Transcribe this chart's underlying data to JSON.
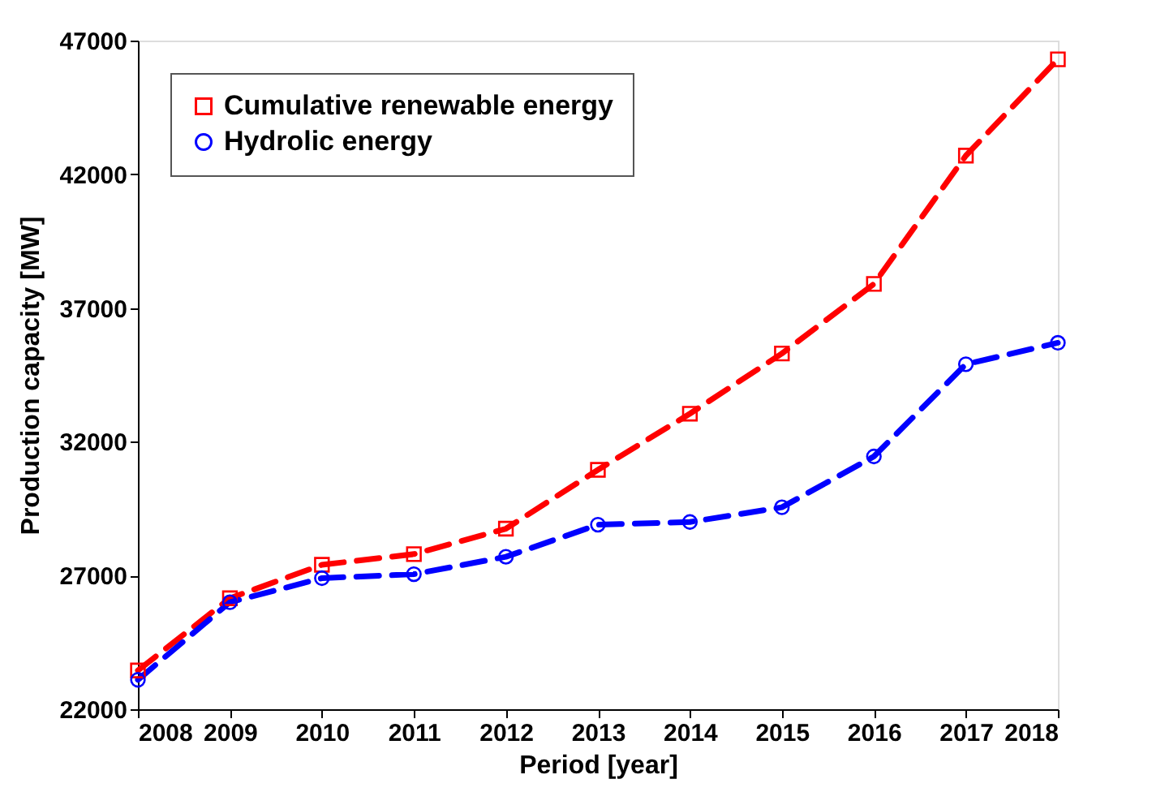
{
  "chart_data": {
    "type": "line",
    "xlabel": "Period [year]",
    "ylabel": "Production capacity [MW]",
    "x": [
      2008,
      2009,
      2010,
      2011,
      2012,
      2013,
      2014,
      2015,
      2016,
      2017,
      2018
    ],
    "series": [
      {
        "name": "Cumulative renewable energy",
        "color": "#ff0000",
        "marker": "square",
        "line_style": "dashed",
        "values": [
          23450,
          26150,
          27400,
          27800,
          28750,
          30950,
          33050,
          35300,
          37900,
          42700,
          46300
        ]
      },
      {
        "name": "Hydrolic energy",
        "color": "#0000ff",
        "marker": "circle",
        "line_style": "dashed",
        "values": [
          23100,
          26000,
          26900,
          27050,
          27700,
          28900,
          29000,
          29550,
          31450,
          34900,
          35700
        ]
      }
    ],
    "xlim": [
      2008,
      2018
    ],
    "xticks": [
      2008,
      2009,
      2010,
      2011,
      2012,
      2013,
      2014,
      2015,
      2016,
      2017,
      2018
    ],
    "ylim": [
      22000,
      47000
    ],
    "yticks": [
      22000,
      27000,
      32000,
      37000,
      42000,
      47000
    ],
    "grid": false,
    "legend": "top left"
  }
}
